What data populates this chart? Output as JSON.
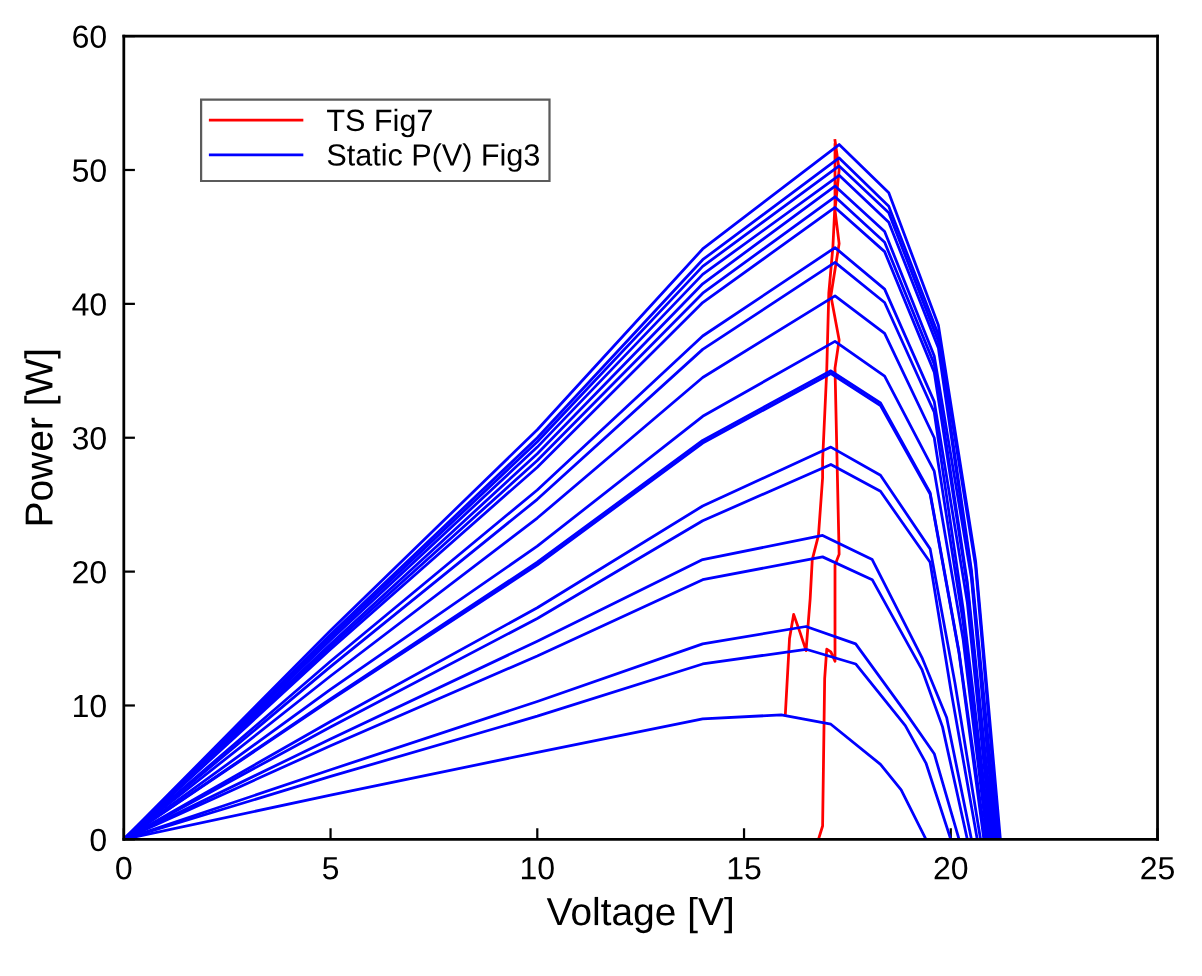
{
  "chart_data": {
    "type": "line",
    "xlabel": "Voltage [V]",
    "ylabel": "Power [W]",
    "xlim": [
      0,
      25
    ],
    "ylim": [
      0,
      60
    ],
    "xticks": [
      0,
      5,
      10,
      15,
      20,
      25
    ],
    "yticks": [
      0,
      10,
      20,
      30,
      40,
      50,
      60
    ],
    "grid": false,
    "legend": "top left",
    "marker": "none",
    "line_style": "solid",
    "series": [
      {
        "name": "TS Fig7",
        "color": "#ff0000",
        "x": [
          0,
          16.8,
          16.9,
          16.95,
          17.0,
          17.1,
          17.2,
          17.2,
          17.3,
          17.25,
          17.2,
          17.3,
          17.1,
          17.3,
          17.2,
          17.3,
          17.2,
          null,
          16.0,
          16.1,
          16.2,
          16.35,
          16.5,
          16.6,
          16.65,
          16.8,
          16.9,
          16.9,
          17.0,
          17.05,
          17.15,
          17.2,
          17.2
        ],
        "values": [
          0,
          0,
          1,
          12,
          14.2,
          14.0,
          13.3,
          20.5,
          21.3,
          28.2,
          35.2,
          37.3,
          40.6,
          44.5,
          47,
          50,
          52.2,
          null,
          9.4,
          15,
          16.8,
          15.5,
          14.1,
          18,
          20.9,
          22.7,
          27,
          28.3,
          35.0,
          40.8,
          44.3,
          47.5,
          51.9
        ]
      },
      {
        "name": "Static P(V) Fig3",
        "color": "#0000ff",
        "x": [
          0,
          5,
          10,
          14,
          17.3,
          18.5,
          19.7,
          20.6,
          21.2
        ],
        "values": [
          0,
          15.6,
          30.6,
          44.1,
          51.9,
          48.3,
          38.4,
          20.8,
          0
        ]
      },
      {
        "color": "#0000ff",
        "x": [
          0,
          5,
          10,
          14,
          17.3,
          18.5,
          19.7,
          20.6,
          21.17
        ],
        "values": [
          0,
          15.3,
          30.0,
          43.3,
          50.9,
          47.3,
          37.7,
          20.4,
          0
        ]
      },
      {
        "color": "#0000ff",
        "x": [
          0,
          5,
          10,
          14,
          17.3,
          18.5,
          19.7,
          20.5,
          21.14
        ],
        "values": [
          0,
          15.1,
          29.7,
          42.8,
          50.3,
          46.8,
          37.2,
          20.1,
          0
        ]
      },
      {
        "color": "#0000ff",
        "x": [
          0,
          5,
          10,
          14,
          17.3,
          18.5,
          19.7,
          20.5,
          21.11
        ],
        "values": [
          0,
          14.9,
          29.3,
          42.2,
          49.6,
          46.1,
          36.7,
          19.8,
          0
        ]
      },
      {
        "color": "#0000ff",
        "x": [
          0,
          5,
          10,
          14,
          17.2,
          18.4,
          19.6,
          20.5,
          21.08
        ],
        "values": [
          0,
          14.6,
          28.8,
          41.5,
          48.8,
          45.4,
          36.1,
          19.5,
          0
        ]
      },
      {
        "color": "#0000ff",
        "x": [
          0,
          5,
          10,
          14,
          17.2,
          18.4,
          19.6,
          20.4,
          21.05
        ],
        "values": [
          0,
          14.4,
          28.3,
          40.8,
          48.0,
          44.6,
          35.5,
          19.2,
          0
        ]
      },
      {
        "color": "#0000ff",
        "x": [
          0,
          5,
          10,
          14,
          17.2,
          18.4,
          19.6,
          20.4,
          21.02
        ],
        "values": [
          0,
          14.2,
          27.8,
          40.1,
          47.2,
          43.9,
          34.9,
          18.9,
          0
        ]
      },
      {
        "color": "#0000ff",
        "x": [
          0,
          5,
          10,
          14,
          17.2,
          18.4,
          19.6,
          20.4,
          20.99
        ],
        "values": [
          0,
          13.3,
          26.1,
          37.6,
          44.2,
          41.1,
          32.7,
          17.7,
          0
        ]
      },
      {
        "color": "#0000ff",
        "x": [
          0,
          5,
          10,
          14,
          17.2,
          18.4,
          19.6,
          20.3,
          20.96
        ],
        "values": [
          0,
          12.9,
          25.4,
          36.6,
          43.1,
          40.1,
          31.9,
          17.2,
          0
        ]
      },
      {
        "color": "#0000ff",
        "x": [
          0,
          5,
          10,
          14,
          17.2,
          18.4,
          19.6,
          20.3,
          20.92
        ],
        "values": [
          0,
          12.2,
          24.0,
          34.5,
          40.6,
          37.8,
          30.0,
          16.2,
          0
        ]
      },
      {
        "color": "#0000ff",
        "x": [
          0,
          5,
          10,
          14,
          17.2,
          18.4,
          19.6,
          20.3,
          20.88
        ],
        "values": [
          0,
          11.2,
          21.9,
          31.6,
          37.2,
          34.6,
          27.5,
          14.9,
          0
        ]
      },
      {
        "color": "#0000ff",
        "x": [
          0,
          5,
          10,
          14,
          17.1,
          18.3,
          19.5,
          20.2,
          20.84
        ],
        "values": [
          0,
          10.5,
          20.7,
          29.8,
          35.0,
          32.6,
          25.9,
          14.0,
          0
        ]
      },
      {
        "color": "#0000ff",
        "x": [
          0,
          5,
          10,
          14,
          17.1,
          18.3,
          19.5,
          20.2,
          20.8
        ],
        "values": [
          0,
          10.4,
          20.5,
          29.6,
          34.8,
          32.4,
          25.8,
          13.9,
          0
        ]
      },
      {
        "color": "#0000ff",
        "x": [
          0,
          5,
          10,
          14,
          17.1,
          18.3,
          19.5,
          20.1,
          20.72
        ],
        "values": [
          0,
          8.8,
          17.3,
          24.9,
          29.3,
          27.2,
          21.7,
          11.7,
          0
        ]
      },
      {
        "color": "#0000ff",
        "x": [
          0,
          5,
          10,
          14,
          17.1,
          18.3,
          19.5,
          20.0,
          20.64
        ],
        "values": [
          0,
          8.4,
          16.5,
          23.8,
          28.0,
          26.0,
          20.7,
          11.2,
          0
        ]
      },
      {
        "color": "#0000ff",
        "x": [
          0,
          5,
          10,
          14,
          16.9,
          18.1,
          19.3,
          19.9,
          20.5
        ],
        "values": [
          0,
          7.5,
          14.8,
          20.9,
          22.7,
          20.9,
          13.6,
          9.1,
          0
        ]
      },
      {
        "color": "#0000ff",
        "x": [
          0,
          5,
          10,
          14,
          16.9,
          18.1,
          19.3,
          19.8,
          20.4
        ],
        "values": [
          0,
          7.0,
          13.7,
          19.4,
          21.1,
          19.4,
          12.7,
          8.4,
          0
        ]
      },
      {
        "color": "#0000ff",
        "x": [
          0,
          5,
          10,
          14,
          16.5,
          17.7,
          18.9,
          19.6,
          20.2
        ],
        "values": [
          0,
          5.2,
          10.3,
          14.6,
          15.9,
          14.6,
          9.5,
          6.4,
          0
        ]
      },
      {
        "color": "#0000ff",
        "x": [
          0,
          5,
          10,
          14,
          16.5,
          17.7,
          18.9,
          19.4,
          20.0
        ],
        "values": [
          0,
          4.7,
          9.2,
          13.1,
          14.2,
          13.1,
          8.5,
          5.7,
          0
        ]
      },
      {
        "color": "#0000ff",
        "x": [
          0,
          5,
          10,
          14,
          15.9,
          17.1,
          18.3,
          18.8,
          19.4
        ],
        "values": [
          0,
          3.3,
          6.5,
          9.0,
          9.3,
          8.6,
          5.6,
          3.7,
          0
        ]
      }
    ]
  }
}
